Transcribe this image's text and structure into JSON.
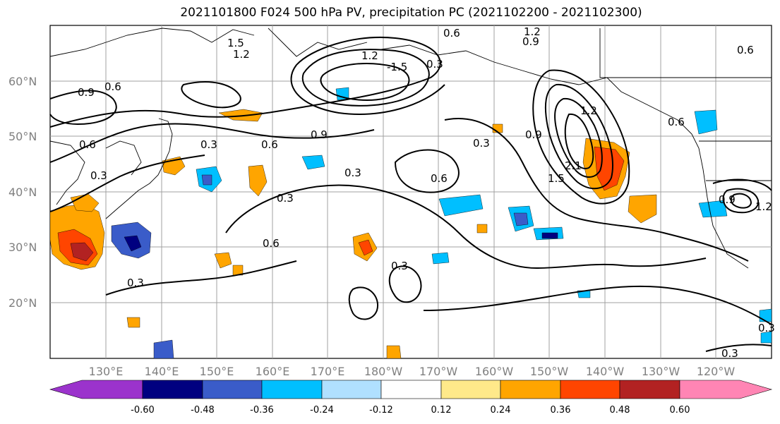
{
  "title": "2021101800 F024 500 hPa PV, precipitation PC (2021102200 - 2021102300)",
  "map": {
    "lon_labels": [
      "130°E",
      "140°E",
      "150°E",
      "160°E",
      "170°E",
      "180°W",
      "170°W",
      "160°W",
      "150°W",
      "140°W",
      "130°W",
      "120°W"
    ],
    "lat_labels": [
      "60°N",
      "50°N",
      "40°N",
      "30°N",
      "20°N"
    ],
    "grid_color": "#a0a0a0"
  },
  "contour_labels": [
    "1.5",
    "1.2",
    "0.6",
    "1.2",
    "0.9",
    "1.2",
    "-1.5",
    "0.9",
    "0.6",
    "0.6",
    "0.3",
    "0.9",
    "0.6",
    "0.3",
    "0.3",
    "0.3",
    "0.6",
    "0.3",
    "0.6",
    "0.6",
    "0.3",
    "0.3",
    "0.9",
    "1.2",
    "2.1",
    "1.5",
    "0.6",
    "0.9",
    "1.2",
    "0.3",
    "0.3",
    "0.3"
  ],
  "colorbar": {
    "colors": [
      "#9b33cc",
      "#000080",
      "#3a5cc9",
      "#00bfff",
      "#b0e0ff",
      "#ffffff",
      "#ffe98a",
      "#ffa500",
      "#ff4500",
      "#b22222",
      "#ff85b4"
    ],
    "labels": [
      "-0.60",
      "-0.48",
      "-0.36",
      "-0.24",
      "-0.12",
      "0.12",
      "0.24",
      "0.36",
      "0.48",
      "0.60"
    ]
  }
}
